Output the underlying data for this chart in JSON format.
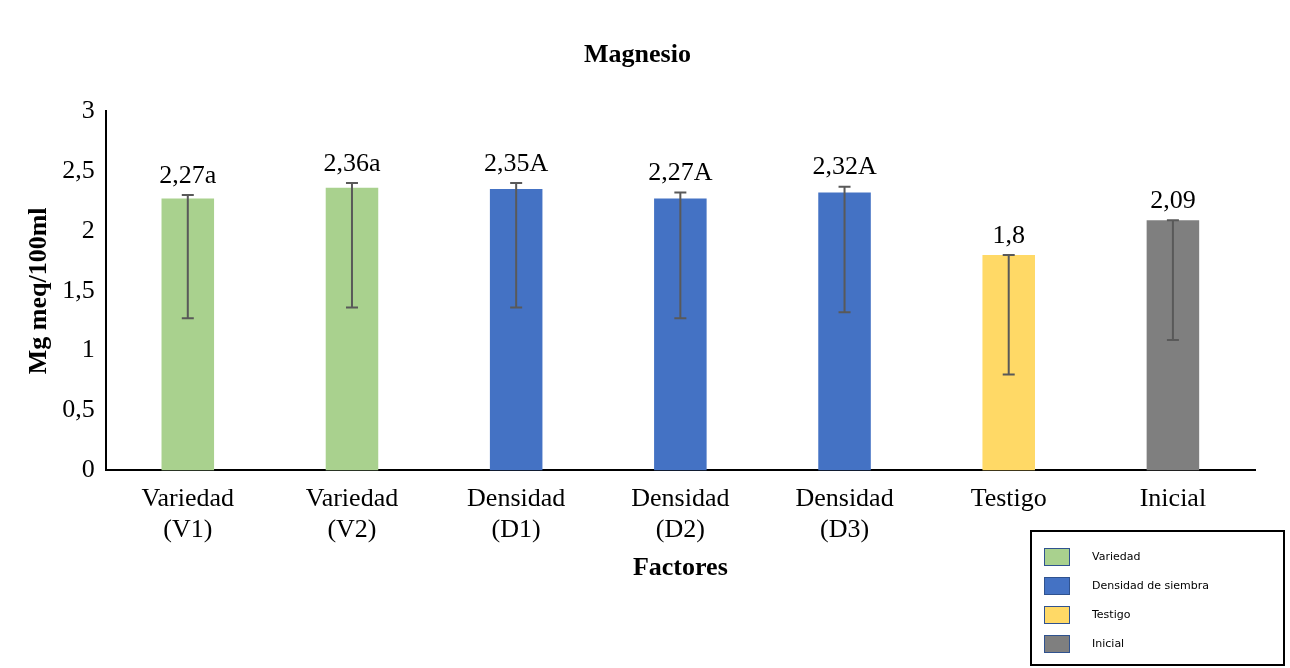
{
  "chart_data": {
    "type": "bar",
    "title": "Magnesio",
    "xlabel": "Factores",
    "ylabel": "Mg meq/100ml",
    "categories": [
      "Variedad (V1)",
      "Variedad (V2)",
      "Densidad (D1)",
      "Densidad (D2)",
      "Densidad (D3)",
      "Testigo",
      "Inicial"
    ],
    "series": [
      {
        "name": "Variedad",
        "color": "#a9d18e",
        "values": [
          2.27,
          2.36,
          null,
          null,
          null,
          null,
          null
        ],
        "value_labels": [
          "2,27a",
          "2,36a",
          null,
          null,
          null,
          null,
          null
        ],
        "errors": [
          [
            1.27,
            2.3
          ],
          [
            1.36,
            2.4
          ],
          null,
          null,
          null,
          null,
          null
        ]
      },
      {
        "name": "Densidad de siembra",
        "color": "#4472c4",
        "values": [
          null,
          null,
          2.35,
          2.27,
          2.32,
          null,
          null
        ],
        "value_labels": [
          null,
          null,
          "2,35A",
          "2,27A",
          "2,32A",
          null,
          null
        ],
        "errors": [
          null,
          null,
          [
            1.36,
            2.4
          ],
          [
            1.27,
            2.32
          ],
          [
            1.32,
            2.37
          ],
          null,
          null
        ]
      },
      {
        "name": "Testigo",
        "color": "#ffd966",
        "values": [
          null,
          null,
          null,
          null,
          null,
          1.8,
          null
        ],
        "value_labels": [
          null,
          null,
          null,
          null,
          null,
          "1,8",
          null
        ],
        "errors": [
          null,
          null,
          null,
          null,
          null,
          [
            0.8,
            1.8
          ],
          null
        ]
      },
      {
        "name": "Inicial",
        "color": "#7f7f7f",
        "values": [
          null,
          null,
          null,
          null,
          null,
          null,
          2.09
        ],
        "value_labels": [
          null,
          null,
          null,
          null,
          null,
          null,
          "2,09"
        ],
        "errors": [
          null,
          null,
          null,
          null,
          null,
          null,
          [
            1.09,
            2.09
          ]
        ]
      }
    ],
    "ylim": [
      0,
      3
    ],
    "yticks": [
      0,
      {
        "value": 0.5,
        "label": "0,5"
      },
      1,
      {
        "value": 1.5,
        "label": "1,5"
      },
      2,
      {
        "value": 2.5,
        "label": "2,5"
      },
      3
    ],
    "grid": false,
    "legend": "bottom right"
  }
}
